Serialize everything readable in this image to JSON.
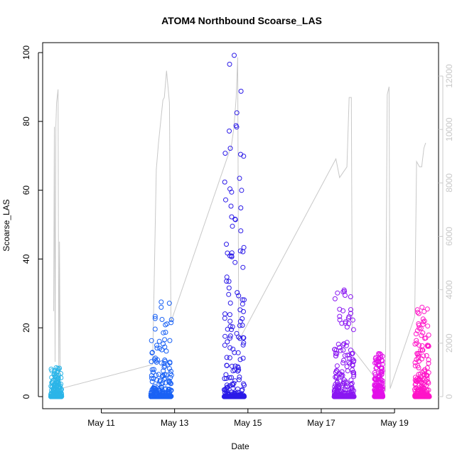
{
  "chart_data": {
    "type": "scatter",
    "title": "ATOM4 Northbound Scoarse_LAS",
    "xlabel": "Date",
    "ylabel": "Scoarse_LAS",
    "ylim": [
      0,
      100
    ],
    "y2lim": [
      0,
      12000
    ],
    "grid": false,
    "x_ticks": [
      "May 11",
      "May 13",
      "May 15",
      "May 17",
      "May 19"
    ],
    "y_ticks": [
      0,
      20,
      40,
      60,
      80,
      100
    ],
    "y2_ticks": [
      0,
      2000,
      4000,
      6000,
      8000,
      10000,
      12000
    ],
    "x_tick_days": [
      11,
      13,
      15,
      17,
      19
    ],
    "xlim_days": [
      9.4,
      20.2
    ],
    "secondary_series": {
      "axis": "right",
      "color": "#c8c8c8",
      "points": [
        [
          9.7,
          3200
        ],
        [
          9.72,
          10100
        ],
        [
          9.74,
          1300
        ],
        [
          9.76,
          10100
        ],
        [
          9.78,
          11000
        ],
        [
          9.82,
          11500
        ],
        [
          9.84,
          600
        ],
        [
          9.86,
          5800
        ],
        [
          9.88,
          200
        ],
        [
          9.9,
          300
        ],
        [
          12.4,
          1200
        ],
        [
          12.5,
          8500
        ],
        [
          12.56,
          9500
        ],
        [
          12.62,
          10300
        ],
        [
          12.68,
          11100
        ],
        [
          12.72,
          11200
        ],
        [
          12.78,
          12200
        ],
        [
          12.86,
          11000
        ],
        [
          12.9,
          2800
        ],
        [
          14.55,
          9400
        ],
        [
          14.62,
          10100
        ],
        [
          14.68,
          11200
        ],
        [
          14.72,
          12700
        ],
        [
          14.75,
          2100
        ],
        [
          17.4,
          8900
        ],
        [
          17.5,
          8200
        ],
        [
          17.6,
          8400
        ],
        [
          17.7,
          8600
        ],
        [
          17.76,
          11200
        ],
        [
          17.82,
          11200
        ],
        [
          17.85,
          1800
        ],
        [
          18.75,
          200
        ],
        [
          18.8,
          11300
        ],
        [
          18.85,
          11600
        ],
        [
          18.88,
          300
        ],
        [
          19.55,
          3000
        ],
        [
          19.6,
          8800
        ],
        [
          19.68,
          8600
        ],
        [
          19.74,
          8600
        ],
        [
          19.8,
          9300
        ],
        [
          19.85,
          9500
        ]
      ]
    },
    "clusters": [
      {
        "color": "#2bb5e8",
        "x_range": [
          9.62,
          9.92
        ],
        "y_max": 8.4
      },
      {
        "color": "#1a62f5",
        "x_range": [
          12.35,
          12.92
        ],
        "y_max": 27.5
      },
      {
        "color": "#2b1ae8",
        "x_range": [
          14.35,
          14.9
        ],
        "y_max": 99.2
      },
      {
        "color": "#8a16f2",
        "x_range": [
          17.35,
          17.9
        ],
        "y_max": 31.0
      },
      {
        "color": "#e210e8",
        "x_range": [
          18.45,
          18.68
        ],
        "y_max": 12.5
      },
      {
        "color": "#ff14c8",
        "x_range": [
          19.55,
          19.95
        ],
        "y_max": 26.0
      }
    ],
    "colors": {
      "frame": "#000000",
      "secondary_line": "#c8c8c8",
      "right_axis": "#c8c8c8"
    }
  }
}
